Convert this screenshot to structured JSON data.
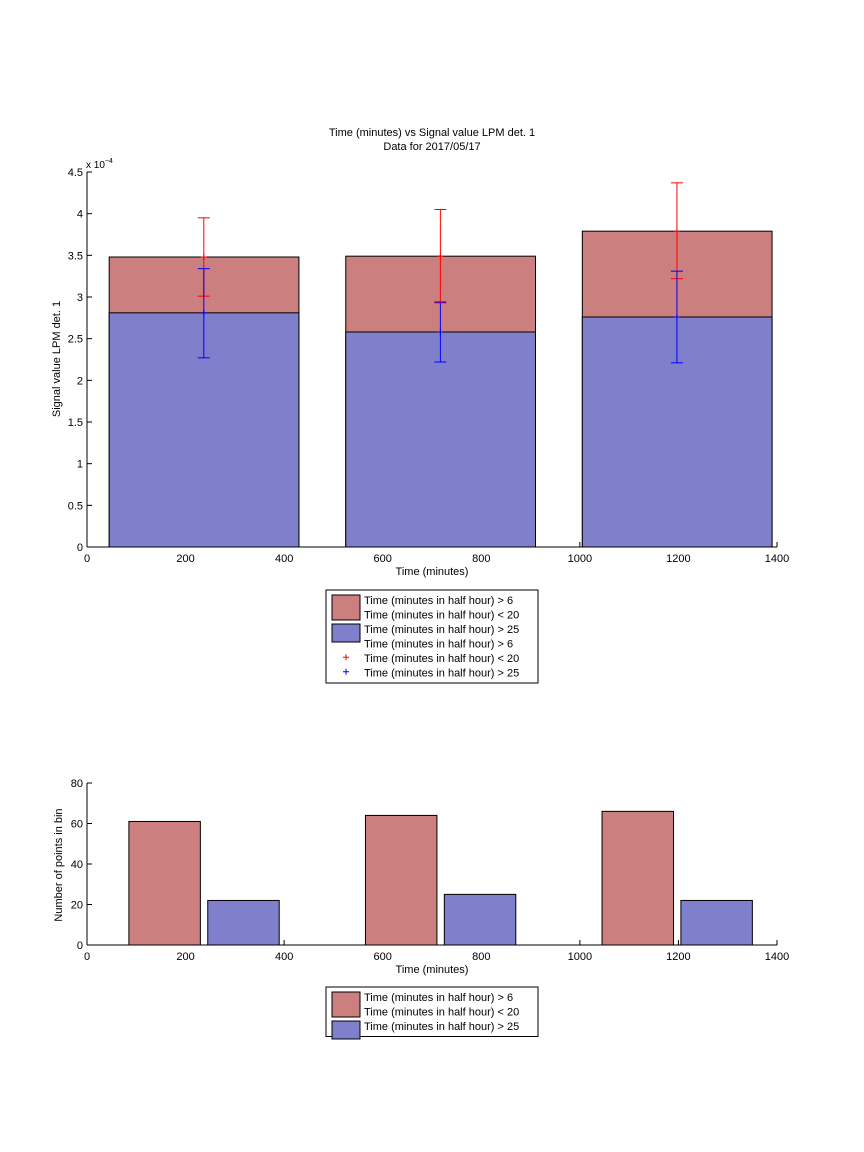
{
  "chart_data": [
    {
      "type": "bar",
      "title": "Time (minutes) vs Signal value LPM det. 1",
      "subtitle": "Data for 2017/05/17",
      "xlabel": "Time (minutes)",
      "ylabel": "Signal value LPM det. 1",
      "y_multiplier": "x 10",
      "y_exponent": "−4",
      "xlim": [
        0,
        1400
      ],
      "ylim": [
        0,
        4.5
      ],
      "xticks": [
        0,
        200,
        400,
        600,
        800,
        1000,
        1200,
        1400
      ],
      "yticks": [
        0,
        0.5,
        1,
        1.5,
        2,
        2.5,
        3,
        3.5,
        4,
        4.5
      ],
      "grid": false,
      "legend_position": "below",
      "colors": {
        "red": "#cc7f7f",
        "blue": "#7f7fcc",
        "err_red": "#ff0000",
        "err_blue": "#0000ff"
      },
      "series": [
        {
          "name": "Time (minutes in half hour) > 6\nTime (minutes in half hour) < 20",
          "bars": [
            {
              "x0": 45,
              "x1": 430,
              "y": 3.48
            },
            {
              "x0": 525,
              "x1": 910,
              "y": 3.49
            },
            {
              "x0": 1005,
              "x1": 1390,
              "y": 3.79
            }
          ]
        },
        {
          "name": "Time (minutes in half hour) > 25",
          "bars": [
            {
              "x0": 45,
              "x1": 430,
              "y": 2.81
            },
            {
              "x0": 525,
              "x1": 910,
              "y": 2.58
            },
            {
              "x0": 1005,
              "x1": 1390,
              "y": 2.76
            }
          ]
        }
      ],
      "error_bars": [
        {
          "name": "Time (minutes in half hour) > 6\nTime (minutes in half hour) < 20",
          "points": [
            {
              "x": 237,
              "y": 3.48,
              "low": 3.01,
              "high": 3.95
            },
            {
              "x": 717,
              "y": 3.49,
              "low": 2.93,
              "high": 4.05
            },
            {
              "x": 1197,
              "y": 3.79,
              "low": 3.22,
              "high": 4.37
            }
          ]
        },
        {
          "name": "Time (minutes in half hour) > 25",
          "points": [
            {
              "x": 237,
              "y": 2.81,
              "low": 2.27,
              "high": 3.34
            },
            {
              "x": 717,
              "y": 2.58,
              "low": 2.22,
              "high": 2.94
            },
            {
              "x": 1197,
              "y": 2.76,
              "low": 2.21,
              "high": 3.31
            }
          ]
        }
      ],
      "legend": [
        {
          "kind": "patch",
          "color": "red",
          "lines": [
            "Time (minutes in half hour) > 6",
            "Time (minutes in half hour) < 20"
          ]
        },
        {
          "kind": "patch",
          "color": "blue",
          "lines": [
            "Time (minutes in half hour) > 25"
          ]
        },
        {
          "kind": "marker",
          "color": "err_red",
          "lines": [
            "Time (minutes in half hour) > 6",
            "Time (minutes in half hour) < 20"
          ]
        },
        {
          "kind": "marker",
          "color": "err_blue",
          "lines": [
            "Time (minutes in half hour) > 25"
          ]
        }
      ]
    },
    {
      "type": "bar",
      "xlabel": "Time (minutes)",
      "ylabel": "Number of points in bin",
      "xlim": [
        0,
        1400
      ],
      "ylim": [
        0,
        80
      ],
      "xticks": [
        0,
        200,
        400,
        600,
        800,
        1000,
        1200,
        1400
      ],
      "yticks": [
        0,
        20,
        40,
        60,
        80
      ],
      "grid": false,
      "legend_position": "below",
      "colors": {
        "red": "#cc7f7f",
        "blue": "#7f7fcc"
      },
      "series": [
        {
          "name": "Time (minutes in half hour) > 6\nTime (minutes in half hour) < 20",
          "bars": [
            {
              "x0": 85,
              "x1": 230,
              "y": 61
            },
            {
              "x0": 565,
              "x1": 710,
              "y": 64
            },
            {
              "x0": 1045,
              "x1": 1190,
              "y": 66
            }
          ]
        },
        {
          "name": "Time (minutes in half hour) > 25",
          "bars": [
            {
              "x0": 245,
              "x1": 390,
              "y": 22
            },
            {
              "x0": 725,
              "x1": 870,
              "y": 25
            },
            {
              "x0": 1205,
              "x1": 1350,
              "y": 22
            }
          ]
        }
      ],
      "legend": [
        {
          "kind": "patch",
          "color": "red",
          "lines": [
            "Time (minutes in half hour) > 6",
            "Time (minutes in half hour) < 20"
          ]
        },
        {
          "kind": "patch",
          "color": "blue",
          "lines": [
            "Time (minutes in half hour) > 25"
          ]
        }
      ]
    }
  ]
}
